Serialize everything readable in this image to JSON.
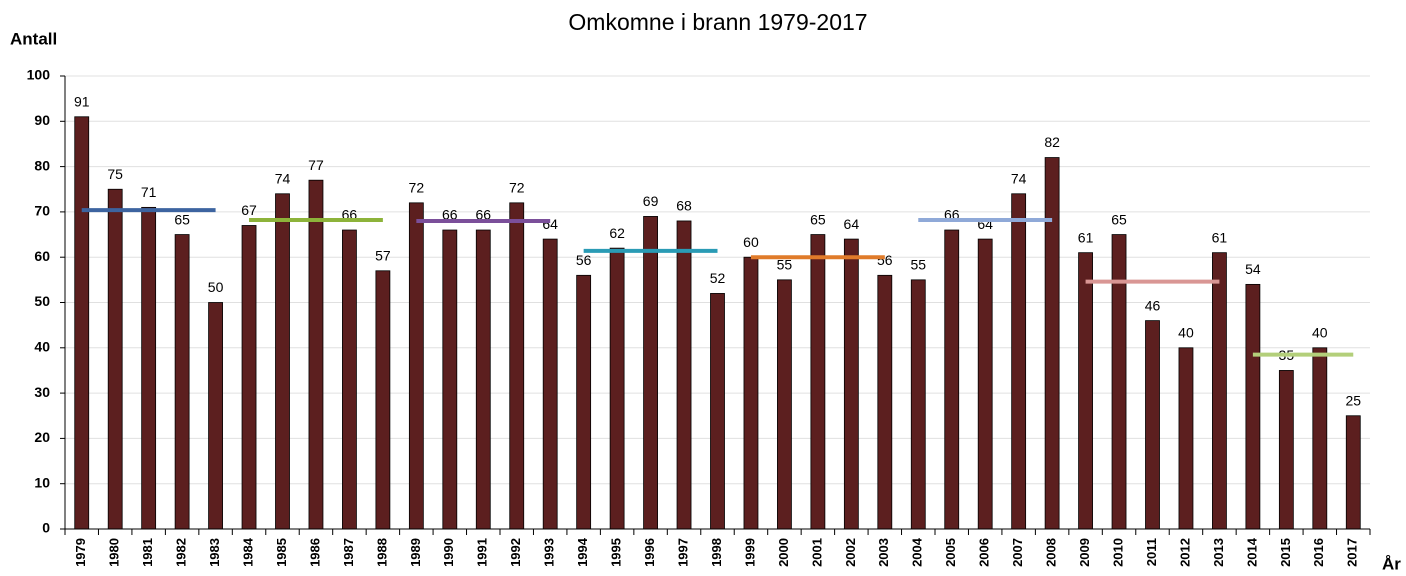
{
  "chart_data": {
    "type": "bar",
    "title": "Omkomne i brann 1979-2017",
    "y_label": "Antall",
    "x_label": "År",
    "categories": [
      "1979",
      "1980",
      "1981",
      "1982",
      "1983",
      "1984",
      "1985",
      "1986",
      "1987",
      "1988",
      "1989",
      "1990",
      "1991",
      "1992",
      "1993",
      "1994",
      "1995",
      "1996",
      "1997",
      "1998",
      "1999",
      "2000",
      "2001",
      "2002",
      "2003",
      "2004",
      "2005",
      "2006",
      "2007",
      "2008",
      "2009",
      "2010",
      "2011",
      "2012",
      "2013",
      "2014",
      "2015",
      "2016",
      "2017"
    ],
    "values": [
      91,
      75,
      71,
      65,
      50,
      67,
      74,
      77,
      66,
      57,
      72,
      66,
      66,
      72,
      64,
      56,
      62,
      69,
      68,
      52,
      60,
      55,
      65,
      64,
      56,
      55,
      66,
      64,
      74,
      82,
      61,
      65,
      46,
      40,
      61,
      54,
      35,
      40,
      25
    ],
    "color": "#5c1f1f",
    "ylim": [
      0,
      100
    ],
    "yticks": [
      0,
      10,
      20,
      30,
      40,
      50,
      60,
      70,
      80,
      90,
      100
    ],
    "grid": true,
    "averages": [
      {
        "color": "#3d64a0",
        "values": [
          70.4,
          70.4,
          70.4,
          70.4,
          70.4,
          null,
          null,
          null,
          null,
          null,
          null,
          null,
          null,
          null,
          null,
          null,
          null,
          null,
          null,
          null,
          null,
          null,
          null,
          null,
          null,
          null,
          null,
          null,
          null,
          null,
          null,
          null,
          null,
          null,
          null,
          null,
          null,
          null,
          null
        ]
      },
      {
        "color": "#8db33a",
        "values": [
          null,
          null,
          null,
          null,
          null,
          68.2,
          68.2,
          68.2,
          68.2,
          68.2,
          null,
          null,
          null,
          null,
          null,
          null,
          null,
          null,
          null,
          null,
          null,
          null,
          null,
          null,
          null,
          null,
          null,
          null,
          null,
          null,
          null,
          null,
          null,
          null,
          null,
          null,
          null,
          null,
          null
        ]
      },
      {
        "color": "#7b4f9a",
        "values": [
          null,
          null,
          null,
          null,
          null,
          null,
          null,
          null,
          null,
          null,
          68,
          68,
          68,
          68,
          68,
          null,
          null,
          null,
          null,
          null,
          null,
          null,
          null,
          null,
          null,
          null,
          null,
          null,
          null,
          null,
          null,
          null,
          null,
          null,
          null,
          null,
          null,
          null,
          null
        ]
      },
      {
        "color": "#2a9bb5",
        "values": [
          null,
          null,
          null,
          null,
          null,
          null,
          null,
          null,
          null,
          null,
          null,
          null,
          null,
          null,
          null,
          61.4,
          61.4,
          61.4,
          61.4,
          61.4,
          null,
          null,
          null,
          null,
          null,
          null,
          null,
          null,
          null,
          null,
          null,
          null,
          null,
          null,
          null,
          null,
          null,
          null,
          null
        ]
      },
      {
        "color": "#e07b2a",
        "values": [
          null,
          null,
          null,
          null,
          null,
          null,
          null,
          null,
          null,
          null,
          null,
          null,
          null,
          null,
          null,
          null,
          null,
          null,
          null,
          null,
          60,
          60,
          60,
          60,
          60,
          null,
          null,
          null,
          null,
          null,
          null,
          null,
          null,
          null,
          null,
          null,
          null,
          null,
          null
        ]
      },
      {
        "color": "#8fa9d8",
        "values": [
          null,
          null,
          null,
          null,
          null,
          null,
          null,
          null,
          null,
          null,
          null,
          null,
          null,
          null,
          null,
          null,
          null,
          null,
          null,
          null,
          null,
          null,
          null,
          null,
          null,
          68.2,
          68.2,
          68.2,
          68.2,
          68.2,
          null,
          null,
          null,
          null,
          null,
          null,
          null,
          null,
          null
        ]
      },
      {
        "color": "#d99694",
        "values": [
          null,
          null,
          null,
          null,
          null,
          null,
          null,
          null,
          null,
          null,
          null,
          null,
          null,
          null,
          null,
          null,
          null,
          null,
          null,
          null,
          null,
          null,
          null,
          null,
          null,
          null,
          null,
          null,
          null,
          null,
          54.6,
          54.6,
          54.6,
          54.6,
          54.6,
          null,
          null,
          null,
          null
        ]
      },
      {
        "color": "#b3cf7a",
        "values": [
          null,
          null,
          null,
          null,
          null,
          null,
          null,
          null,
          null,
          null,
          null,
          null,
          null,
          null,
          null,
          null,
          null,
          null,
          null,
          null,
          null,
          null,
          null,
          null,
          null,
          null,
          null,
          null,
          null,
          null,
          null,
          null,
          null,
          null,
          null,
          38.5,
          38.5,
          38.5,
          38.5
        ]
      }
    ]
  }
}
